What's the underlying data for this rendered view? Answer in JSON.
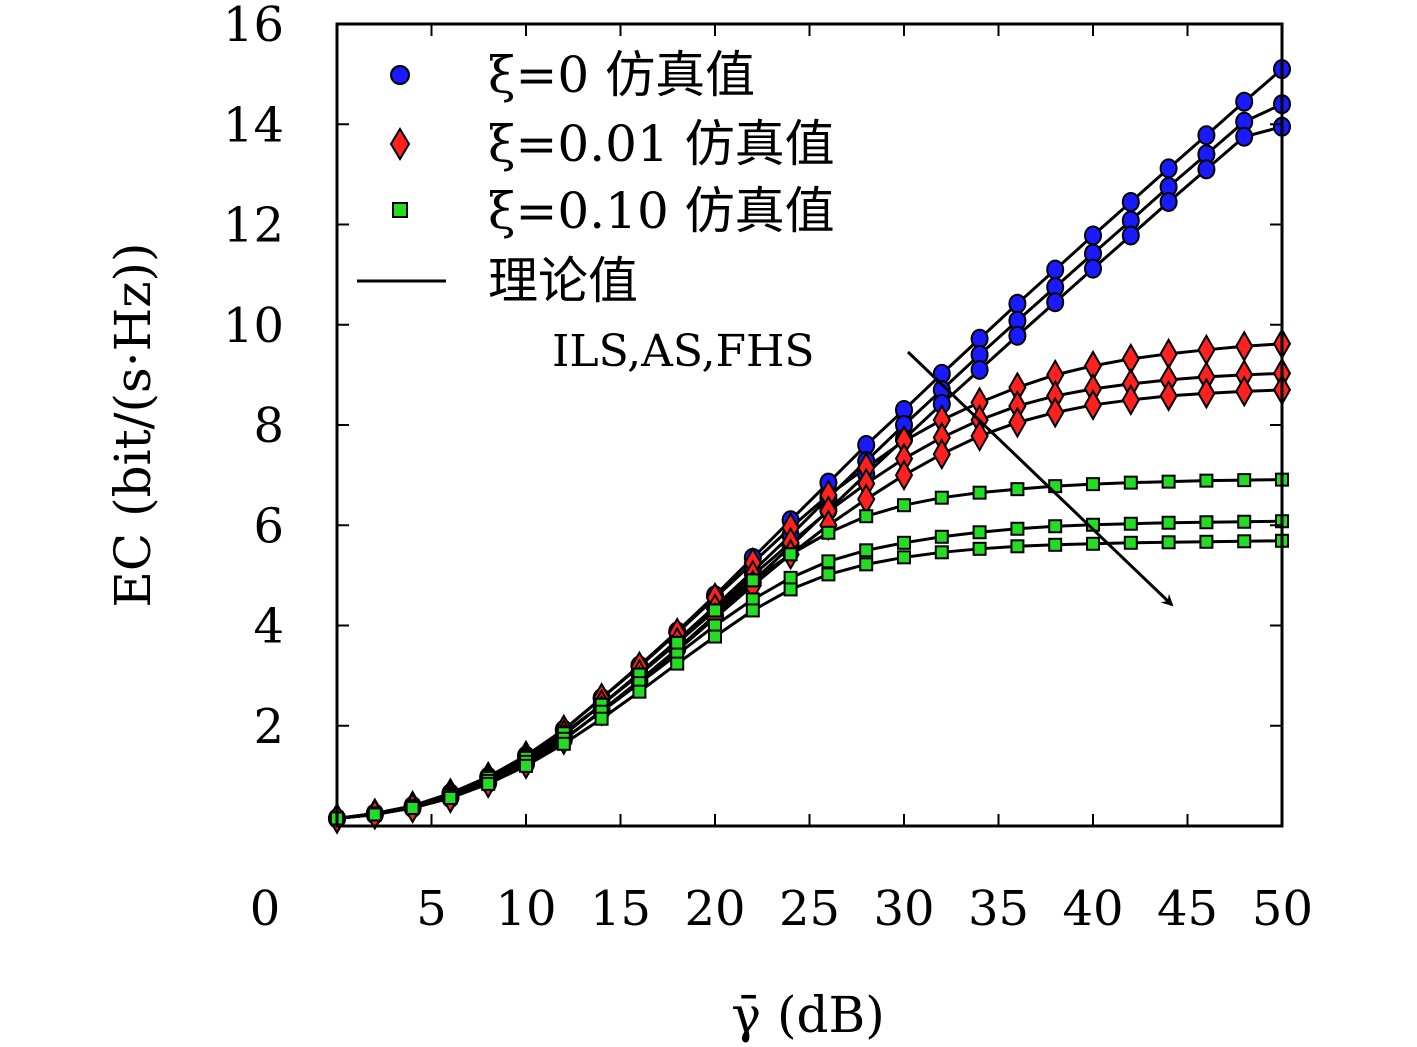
{
  "chart_data": {
    "type": "line",
    "xlabel": "γ̄ (dB)",
    "ylabel": "EC (bit/(s·Hz))",
    "xlim": [
      0,
      50
    ],
    "ylim": [
      0,
      16
    ],
    "x_ticks": [
      "0",
      "5",
      "10",
      "15",
      "20",
      "25",
      "30",
      "35",
      "40",
      "45",
      "50"
    ],
    "y_ticks": [
      "2",
      "4",
      "6",
      "8",
      "10",
      "12",
      "14",
      "16"
    ],
    "grid": false,
    "legend_position": "top-left",
    "legend": [
      {
        "label": "ξ=0 仿真值",
        "marker": "circle",
        "color": "#1a1aff"
      },
      {
        "label": "ξ=0.01 仿真值",
        "marker": "diamond",
        "color": "#ff2020"
      },
      {
        "label": "ξ=0.10 仿真值",
        "marker": "square",
        "color": "#22dd22"
      },
      {
        "label": "理论值",
        "marker": "line",
        "color": "#000000"
      }
    ],
    "annotation": "ILS,AS,FHS",
    "x": [
      0,
      2,
      4,
      6,
      8,
      10,
      12,
      14,
      16,
      18,
      20,
      22,
      24,
      26,
      28,
      30,
      32,
      34,
      36,
      38,
      40,
      42,
      44,
      46,
      48,
      50
    ],
    "series": [
      {
        "marker": "circle",
        "values": [
          0.15,
          0.25,
          0.4,
          0.65,
          0.98,
          1.4,
          1.92,
          2.55,
          3.2,
          3.88,
          4.6,
          5.35,
          6.1,
          6.85,
          7.6,
          8.3,
          9.02,
          9.72,
          10.42,
          11.1,
          11.78,
          12.45,
          13.12,
          13.78,
          14.45,
          15.1
        ]
      },
      {
        "marker": "circle",
        "values": [
          0.15,
          0.24,
          0.38,
          0.6,
          0.92,
          1.32,
          1.82,
          2.42,
          3.05,
          3.7,
          4.38,
          5.08,
          5.8,
          6.55,
          7.28,
          8.0,
          8.7,
          9.4,
          10.08,
          10.75,
          11.42,
          12.08,
          12.75,
          13.4,
          14.05,
          14.4
        ]
      },
      {
        "marker": "circle",
        "values": [
          0.15,
          0.23,
          0.36,
          0.56,
          0.86,
          1.24,
          1.72,
          2.3,
          2.9,
          3.53,
          4.2,
          4.88,
          5.58,
          6.3,
          7.02,
          7.72,
          8.42,
          9.1,
          9.78,
          10.45,
          11.12,
          11.78,
          12.45,
          13.1,
          13.75,
          13.95
        ]
      },
      {
        "marker": "diamond",
        "values": [
          0.15,
          0.25,
          0.4,
          0.65,
          0.98,
          1.4,
          1.92,
          2.55,
          3.18,
          3.85,
          4.55,
          5.25,
          5.95,
          6.6,
          7.15,
          7.68,
          8.1,
          8.45,
          8.75,
          9.0,
          9.18,
          9.32,
          9.42,
          9.5,
          9.57,
          9.62
        ]
      },
      {
        "marker": "diamond",
        "values": [
          0.15,
          0.24,
          0.38,
          0.6,
          0.92,
          1.32,
          1.82,
          2.42,
          3.02,
          3.66,
          4.33,
          5.0,
          5.65,
          6.28,
          6.83,
          7.33,
          7.75,
          8.1,
          8.38,
          8.58,
          8.72,
          8.82,
          8.9,
          8.96,
          9.0,
          9.03
        ]
      },
      {
        "marker": "diamond",
        "values": [
          0.15,
          0.23,
          0.36,
          0.56,
          0.86,
          1.24,
          1.72,
          2.3,
          2.88,
          3.5,
          4.15,
          4.8,
          5.42,
          6.0,
          6.52,
          7.0,
          7.42,
          7.78,
          8.05,
          8.25,
          8.4,
          8.5,
          8.58,
          8.63,
          8.67,
          8.7
        ]
      },
      {
        "marker": "square",
        "values": [
          0.15,
          0.25,
          0.4,
          0.64,
          0.96,
          1.36,
          1.85,
          2.42,
          3.02,
          3.65,
          4.3,
          4.9,
          5.42,
          5.85,
          6.18,
          6.4,
          6.55,
          6.65,
          6.72,
          6.78,
          6.82,
          6.85,
          6.87,
          6.89,
          6.9,
          6.91
        ]
      },
      {
        "marker": "square",
        "values": [
          0.15,
          0.24,
          0.38,
          0.6,
          0.9,
          1.28,
          1.74,
          2.28,
          2.85,
          3.42,
          4.0,
          4.52,
          4.95,
          5.28,
          5.5,
          5.65,
          5.77,
          5.86,
          5.93,
          5.98,
          6.01,
          6.03,
          6.05,
          6.06,
          6.07,
          6.08
        ]
      },
      {
        "marker": "square",
        "values": [
          0.15,
          0.23,
          0.36,
          0.56,
          0.84,
          1.2,
          1.64,
          2.14,
          2.68,
          3.24,
          3.78,
          4.3,
          4.72,
          5.02,
          5.22,
          5.36,
          5.46,
          5.53,
          5.58,
          5.61,
          5.63,
          5.65,
          5.66,
          5.67,
          5.68,
          5.69
        ]
      }
    ]
  }
}
